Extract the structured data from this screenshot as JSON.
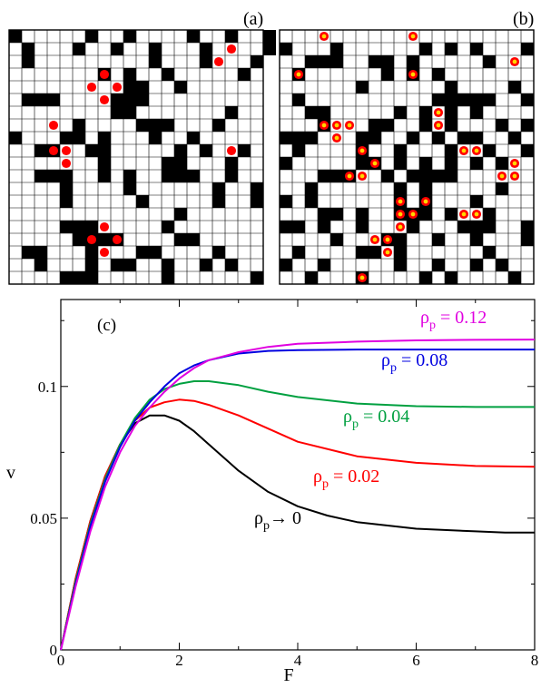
{
  "panels": {
    "a": {
      "label": "(a)",
      "grid_size": 20,
      "obstacles": [
        [
          0,
          0
        ],
        [
          6,
          0
        ],
        [
          9,
          0
        ],
        [
          14,
          0
        ],
        [
          17,
          0
        ],
        [
          20,
          0
        ],
        [
          1,
          1
        ],
        [
          5,
          1
        ],
        [
          8,
          1
        ],
        [
          11,
          1
        ],
        [
          15,
          1
        ],
        [
          20,
          1
        ],
        [
          1,
          2
        ],
        [
          11,
          2
        ],
        [
          15,
          2
        ],
        [
          19,
          2
        ],
        [
          7,
          3
        ],
        [
          9,
          3
        ],
        [
          12,
          3
        ],
        [
          18,
          3
        ],
        [
          9,
          4
        ],
        [
          10,
          4
        ],
        [
          13,
          4
        ],
        [
          1,
          5
        ],
        [
          2,
          5
        ],
        [
          3,
          5
        ],
        [
          8,
          5
        ],
        [
          9,
          5
        ],
        [
          10,
          5
        ],
        [
          8,
          6
        ],
        [
          9,
          6
        ],
        [
          17,
          6
        ],
        [
          5,
          7
        ],
        [
          10,
          7
        ],
        [
          11,
          7
        ],
        [
          12,
          7
        ],
        [
          16,
          7
        ],
        [
          0,
          8
        ],
        [
          4,
          8
        ],
        [
          5,
          8
        ],
        [
          7,
          8
        ],
        [
          11,
          8
        ],
        [
          14,
          8
        ],
        [
          2,
          9
        ],
        [
          3,
          9
        ],
        [
          6,
          9
        ],
        [
          7,
          9
        ],
        [
          13,
          9
        ],
        [
          15,
          9
        ],
        [
          18,
          9
        ],
        [
          7,
          10
        ],
        [
          12,
          10
        ],
        [
          13,
          10
        ],
        [
          17,
          10
        ],
        [
          2,
          11
        ],
        [
          3,
          11
        ],
        [
          4,
          11
        ],
        [
          7,
          11
        ],
        [
          9,
          11
        ],
        [
          12,
          11
        ],
        [
          13,
          11
        ],
        [
          14,
          11
        ],
        [
          17,
          11
        ],
        [
          4,
          12
        ],
        [
          9,
          12
        ],
        [
          16,
          12
        ],
        [
          19,
          12
        ],
        [
          4,
          13
        ],
        [
          10,
          13
        ],
        [
          16,
          13
        ],
        [
          19,
          13
        ],
        [
          13,
          14
        ],
        [
          4,
          15
        ],
        [
          5,
          15
        ],
        [
          6,
          15
        ],
        [
          12,
          15
        ],
        [
          5,
          16
        ],
        [
          6,
          16
        ],
        [
          7,
          16
        ],
        [
          8,
          16
        ],
        [
          13,
          16
        ],
        [
          14,
          16
        ],
        [
          1,
          17
        ],
        [
          2,
          17
        ],
        [
          6,
          17
        ],
        [
          10,
          17
        ],
        [
          11,
          17
        ],
        [
          16,
          17
        ],
        [
          2,
          18
        ],
        [
          6,
          18
        ],
        [
          8,
          18
        ],
        [
          9,
          18
        ],
        [
          12,
          18
        ],
        [
          15,
          18
        ],
        [
          17,
          18
        ],
        [
          4,
          19
        ],
        [
          5,
          19
        ],
        [
          6,
          19
        ],
        [
          12,
          19
        ],
        [
          19,
          19
        ]
      ],
      "particles": [
        [
          16,
          2
        ],
        [
          17,
          1
        ],
        [
          6,
          4
        ],
        [
          7,
          3
        ],
        [
          8,
          4
        ],
        [
          7,
          5
        ],
        [
          3,
          7
        ],
        [
          3,
          9
        ],
        [
          4,
          9
        ],
        [
          4,
          10
        ],
        [
          17,
          9
        ],
        [
          7,
          15
        ],
        [
          8,
          16
        ],
        [
          6,
          16
        ],
        [
          7,
          17
        ]
      ],
      "particle_style": "filled"
    },
    "b": {
      "label": "(b)",
      "grid_size": 20,
      "obstacles": [
        [
          0,
          1
        ],
        [
          4,
          1
        ],
        [
          11,
          1
        ],
        [
          13,
          1
        ],
        [
          15,
          1
        ],
        [
          19,
          1
        ],
        [
          2,
          2
        ],
        [
          3,
          2
        ],
        [
          4,
          2
        ],
        [
          7,
          2
        ],
        [
          8,
          2
        ],
        [
          10,
          2
        ],
        [
          16,
          2
        ],
        [
          1,
          3
        ],
        [
          8,
          3
        ],
        [
          10,
          3
        ],
        [
          12,
          3
        ],
        [
          6,
          4
        ],
        [
          13,
          4
        ],
        [
          18,
          4
        ],
        [
          1,
          5
        ],
        [
          12,
          5
        ],
        [
          13,
          5
        ],
        [
          14,
          5
        ],
        [
          15,
          5
        ],
        [
          16,
          5
        ],
        [
          19,
          5
        ],
        [
          2,
          6
        ],
        [
          3,
          6
        ],
        [
          9,
          6
        ],
        [
          11,
          6
        ],
        [
          13,
          6
        ],
        [
          15,
          6
        ],
        [
          3,
          7
        ],
        [
          7,
          7
        ],
        [
          8,
          7
        ],
        [
          11,
          7
        ],
        [
          13,
          7
        ],
        [
          17,
          7
        ],
        [
          19,
          7
        ],
        [
          0,
          8
        ],
        [
          1,
          8
        ],
        [
          2,
          8
        ],
        [
          6,
          8
        ],
        [
          7,
          8
        ],
        [
          10,
          8
        ],
        [
          12,
          8
        ],
        [
          14,
          8
        ],
        [
          15,
          8
        ],
        [
          18,
          8
        ],
        [
          1,
          9
        ],
        [
          6,
          9
        ],
        [
          9,
          9
        ],
        [
          13,
          9
        ],
        [
          16,
          9
        ],
        [
          19,
          9
        ],
        [
          0,
          10
        ],
        [
          6,
          10
        ],
        [
          7,
          10
        ],
        [
          9,
          10
        ],
        [
          11,
          10
        ],
        [
          13,
          10
        ],
        [
          15,
          10
        ],
        [
          17,
          10
        ],
        [
          3,
          11
        ],
        [
          4,
          11
        ],
        [
          5,
          11
        ],
        [
          8,
          11
        ],
        [
          10,
          11
        ],
        [
          11,
          11
        ],
        [
          12,
          11
        ],
        [
          13,
          11
        ],
        [
          2,
          12
        ],
        [
          9,
          12
        ],
        [
          11,
          12
        ],
        [
          17,
          12
        ],
        [
          0,
          13
        ],
        [
          2,
          13
        ],
        [
          9,
          13
        ],
        [
          11,
          13
        ],
        [
          15,
          13
        ],
        [
          3,
          14
        ],
        [
          4,
          14
        ],
        [
          6,
          14
        ],
        [
          9,
          14
        ],
        [
          10,
          14
        ],
        [
          11,
          14
        ],
        [
          13,
          14
        ],
        [
          16,
          14
        ],
        [
          0,
          15
        ],
        [
          1,
          15
        ],
        [
          3,
          15
        ],
        [
          6,
          15
        ],
        [
          10,
          15
        ],
        [
          14,
          15
        ],
        [
          15,
          15
        ],
        [
          16,
          15
        ],
        [
          19,
          15
        ],
        [
          4,
          16
        ],
        [
          8,
          16
        ],
        [
          9,
          16
        ],
        [
          12,
          16
        ],
        [
          15,
          16
        ],
        [
          19,
          16
        ],
        [
          1,
          17
        ],
        [
          6,
          17
        ],
        [
          7,
          17
        ],
        [
          9,
          17
        ],
        [
          16,
          17
        ],
        [
          0,
          18
        ],
        [
          3,
          18
        ],
        [
          9,
          18
        ],
        [
          12,
          18
        ],
        [
          15,
          18
        ],
        [
          17,
          18
        ],
        [
          2,
          19
        ],
        [
          6,
          19
        ],
        [
          11,
          19
        ],
        [
          13,
          19
        ],
        [
          18,
          19
        ]
      ],
      "particles": [
        [
          3,
          0
        ],
        [
          10,
          0
        ],
        [
          1,
          3
        ],
        [
          10,
          3
        ],
        [
          18,
          2
        ],
        [
          3,
          7
        ],
        [
          4,
          7
        ],
        [
          4,
          8
        ],
        [
          5,
          7
        ],
        [
          12,
          6
        ],
        [
          12,
          7
        ],
        [
          6,
          9
        ],
        [
          7,
          10
        ],
        [
          5,
          11
        ],
        [
          6,
          11
        ],
        [
          14,
          9
        ],
        [
          15,
          9
        ],
        [
          18,
          10
        ],
        [
          17,
          11
        ],
        [
          18,
          11
        ],
        [
          9,
          13
        ],
        [
          11,
          13
        ],
        [
          9,
          14
        ],
        [
          10,
          14
        ],
        [
          14,
          14
        ],
        [
          15,
          14
        ],
        [
          9,
          15
        ],
        [
          7,
          16
        ],
        [
          8,
          16
        ],
        [
          8,
          17
        ],
        [
          6,
          19
        ]
      ],
      "particle_style": "ringed"
    }
  },
  "colors": {
    "obstacle": "#000000",
    "particle_fill": "#ff0000",
    "particle_ring": "#ffd700",
    "grid_line": "#000000"
  },
  "chart_data": {
    "type": "line",
    "panel_label": "(c)",
    "xlabel": "F",
    "ylabel": "v",
    "xlim": [
      0,
      8
    ],
    "ylim": [
      0,
      0.133
    ],
    "x_ticks": [
      0,
      2,
      4,
      6,
      8
    ],
    "x_tick_labels": [
      "0",
      "2",
      "4",
      "6",
      "8"
    ],
    "y_ticks": [
      0,
      0.05,
      0.1
    ],
    "y_tick_labels": [
      "0",
      "0.05",
      "0.1"
    ],
    "grid": false,
    "series": [
      {
        "name": "ρp = 0.12",
        "label_main": "ρ",
        "label_sub": "p",
        "label_rest": " = 0.12",
        "color": "#e000e0",
        "x": [
          0,
          0.25,
          0.5,
          0.75,
          1.0,
          1.25,
          1.5,
          1.75,
          2.0,
          2.25,
          2.5,
          3.0,
          3.5,
          4.0,
          5.0,
          6.0,
          7.0,
          8.0
        ],
        "y": [
          0,
          0.024,
          0.045,
          0.062,
          0.075,
          0.085,
          0.092,
          0.098,
          0.103,
          0.107,
          0.11,
          0.113,
          0.115,
          0.1162,
          0.117,
          0.1175,
          0.1177,
          0.1178
        ]
      },
      {
        "name": "ρp = 0.08",
        "label_main": "ρ",
        "label_sub": "p",
        "label_rest": " = 0.08",
        "color": "#0000e0",
        "x": [
          0,
          0.25,
          0.5,
          0.75,
          1.0,
          1.25,
          1.5,
          1.75,
          2.0,
          2.25,
          2.5,
          3.0,
          3.5,
          4.0,
          5.0,
          6.0,
          7.0,
          8.0
        ],
        "y": [
          0,
          0.025,
          0.047,
          0.064,
          0.077,
          0.087,
          0.094,
          0.1,
          0.105,
          0.108,
          0.11,
          0.1125,
          0.1135,
          0.1138,
          0.114,
          0.114,
          0.114,
          0.114
        ]
      },
      {
        "name": "ρp = 0.04",
        "label_main": "ρ",
        "label_sub": "p",
        "label_rest": " = 0.04",
        "color": "#00a040",
        "x": [
          0,
          0.25,
          0.5,
          0.75,
          1.0,
          1.25,
          1.5,
          1.75,
          2.0,
          2.25,
          2.5,
          3.0,
          3.5,
          4.0,
          5.0,
          6.0,
          7.0,
          8.0
        ],
        "y": [
          0,
          0.026,
          0.048,
          0.065,
          0.078,
          0.088,
          0.095,
          0.099,
          0.101,
          0.102,
          0.102,
          0.1005,
          0.098,
          0.096,
          0.0935,
          0.0925,
          0.0922,
          0.0922
        ]
      },
      {
        "name": "ρp = 0.02",
        "label_main": "ρ",
        "label_sub": "p",
        "label_rest": " = 0.02",
        "color": "#ff0000",
        "x": [
          0,
          0.25,
          0.5,
          0.75,
          1.0,
          1.25,
          1.5,
          1.75,
          2.0,
          2.25,
          2.5,
          3.0,
          3.5,
          4.0,
          5.0,
          6.0,
          7.0,
          8.0
        ],
        "y": [
          0,
          0.027,
          0.049,
          0.066,
          0.078,
          0.087,
          0.092,
          0.094,
          0.095,
          0.0945,
          0.093,
          0.089,
          0.084,
          0.079,
          0.0735,
          0.071,
          0.0698,
          0.0695
        ]
      },
      {
        "name": "ρp→ 0",
        "label_main": "ρ",
        "label_sub": "p",
        "label_rest": "→ 0",
        "color": "#000000",
        "x": [
          0,
          0.25,
          0.5,
          0.75,
          1.0,
          1.25,
          1.5,
          1.75,
          2.0,
          2.25,
          2.5,
          3.0,
          3.5,
          4.0,
          4.5,
          5.0,
          6.0,
          7.0,
          7.5,
          8.0
        ],
        "y": [
          0,
          0.027,
          0.049,
          0.066,
          0.078,
          0.086,
          0.089,
          0.089,
          0.087,
          0.083,
          0.078,
          0.068,
          0.06,
          0.0545,
          0.051,
          0.0485,
          0.046,
          0.045,
          0.0445,
          0.0445
        ]
      }
    ]
  }
}
